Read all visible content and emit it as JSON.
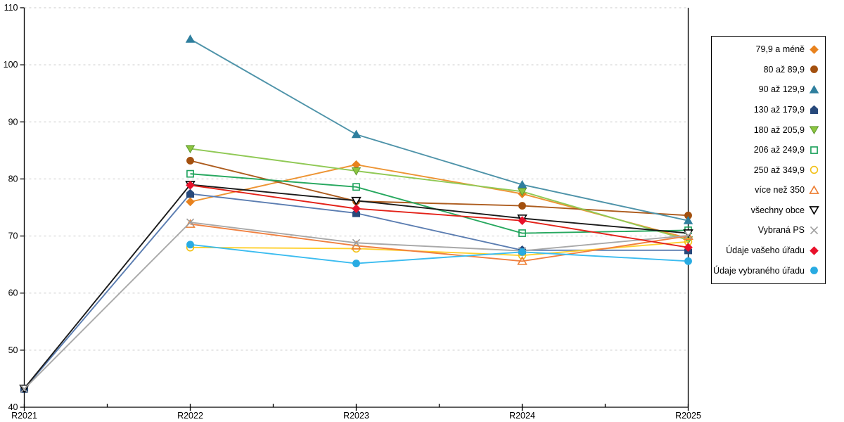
{
  "chart_data": {
    "type": "line",
    "title": "",
    "xlabel": "",
    "ylabel": "",
    "categories": [
      "R2021",
      "R2022",
      "R2023",
      "R2024",
      "R2025"
    ],
    "ylim": [
      40,
      110
    ],
    "ytick_step": 10,
    "grid": "horizontal-dashed",
    "grid_color": "#C9C9C9",
    "axis_color": "#000000",
    "legend_position": "right",
    "series": [
      {
        "name": "79,9 a méně",
        "marker": "diamond",
        "fill": "solid",
        "color": "#E8821E",
        "line_color": "#ED9433",
        "values": [
          null,
          76.0,
          82.5,
          77.4,
          69.6
        ]
      },
      {
        "name": "80 až 89,9",
        "marker": "circle",
        "fill": "solid",
        "color": "#A3500F",
        "line_color": "#AD5C1E",
        "values": [
          null,
          83.2,
          76.1,
          75.3,
          73.6
        ]
      },
      {
        "name": "90 až 129,9",
        "marker": "triangle-up",
        "fill": "solid",
        "color": "#2F7F9E",
        "line_color": "#4E93A9",
        "values": [
          null,
          104.5,
          87.8,
          79.0,
          72.7
        ]
      },
      {
        "name": "130 až 179,9",
        "marker": "pentagon",
        "fill": "solid",
        "color": "#27497B",
        "line_color": "#5B7DB1",
        "values": [
          43.2,
          77.4,
          74.0,
          67.5,
          67.5
        ]
      },
      {
        "name": "180 až 205,9",
        "marker": "triangle-down",
        "fill": "solid",
        "color": "#8DC63F",
        "line_color": "#90C955",
        "stroke": "#5E9732",
        "values": [
          null,
          85.3,
          81.4,
          77.8,
          69.3
        ]
      },
      {
        "name": "206 až 249,9",
        "marker": "square",
        "fill": "open",
        "color": "#1BA05A",
        "line_color": "#27A85F",
        "values": [
          null,
          80.9,
          78.6,
          70.5,
          71.0
        ]
      },
      {
        "name": "250 až 349,9",
        "marker": "circle",
        "fill": "open",
        "color": "#F2C014",
        "line_color": "#FFD02E",
        "values": [
          null,
          68.0,
          67.8,
          66.6,
          69.0
        ]
      },
      {
        "name": "více než 350",
        "marker": "triangle-up",
        "fill": "open",
        "color": "#ED7D31",
        "line_color": "#F08040",
        "values": [
          null,
          72.1,
          68.3,
          65.6,
          70.0
        ]
      },
      {
        "name": "všechny obce",
        "marker": "triangle-down",
        "fill": "open",
        "color": "#000000",
        "line_color": "#1A1A1A",
        "values": [
          43.3,
          79.0,
          76.2,
          73.1,
          70.5
        ]
      },
      {
        "name": "Vybraná PS",
        "marker": "x",
        "fill": "open",
        "color": "#9E9E9E",
        "line_color": "#A8A8A8",
        "values": [
          43.2,
          72.4,
          68.8,
          67.4,
          70.1
        ]
      },
      {
        "name": "Údaje vašeho úřadu",
        "marker": "diamond",
        "fill": "solid",
        "color": "#E8112B",
        "line_color": "#E32219",
        "values": [
          null,
          78.9,
          74.8,
          72.7,
          68.0
        ]
      },
      {
        "name": "Údaje vybraného úřadu",
        "marker": "circle",
        "fill": "solid",
        "color": "#29ABE2",
        "line_color": "#3BBCF0",
        "values": [
          null,
          68.5,
          65.2,
          67.2,
          65.6
        ]
      }
    ]
  }
}
